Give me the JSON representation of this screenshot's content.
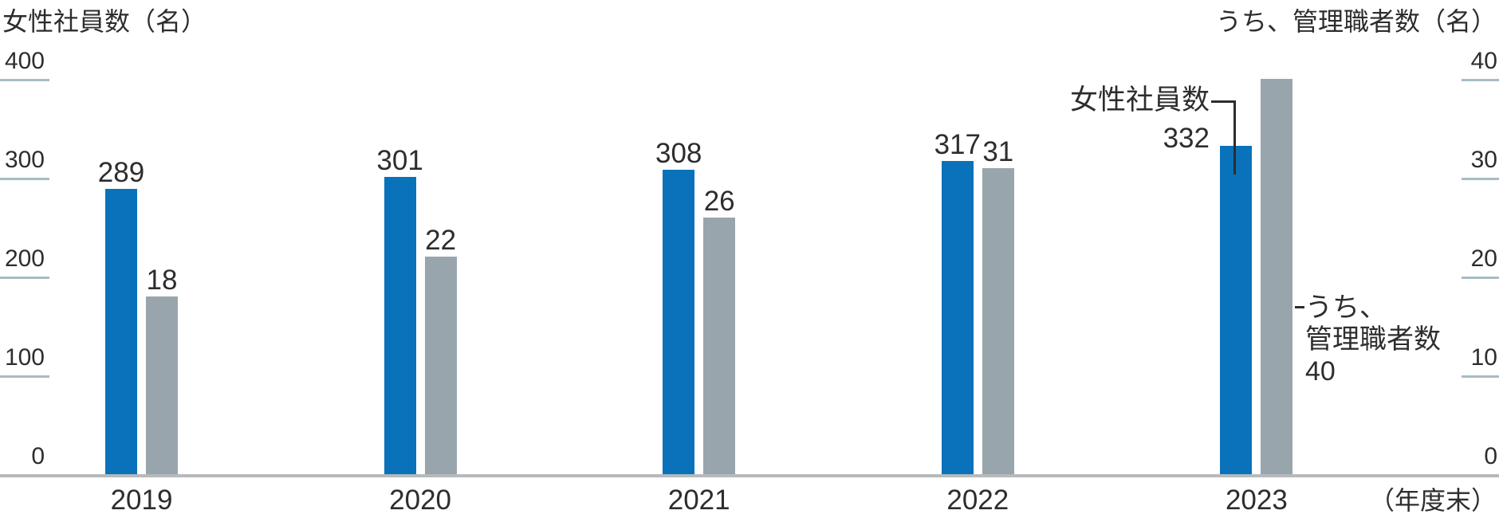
{
  "chart_data": {
    "type": "bar",
    "title_left": "女性社員数（名）",
    "title_right": "うち、管理職者数（名）",
    "x_axis_note": "（年度末）",
    "categories": [
      "2019",
      "2020",
      "2021",
      "2022",
      "2023"
    ],
    "series": [
      {
        "name": "女性社員数",
        "axis": "left",
        "color": "#0a72bb",
        "values": [
          289,
          301,
          308,
          317,
          332
        ],
        "value_labels": [
          "289",
          "301",
          "308",
          "317",
          ""
        ]
      },
      {
        "name": "うち、管理職者数",
        "axis": "right",
        "color": "#98a5ad",
        "values": [
          18,
          22,
          26,
          31,
          40
        ],
        "value_labels": [
          "18",
          "22",
          "26",
          "31",
          ""
        ]
      }
    ],
    "left_axis": {
      "max": 400,
      "ticks": [
        400,
        300,
        200,
        100,
        0
      ]
    },
    "right_axis": {
      "max": 40,
      "ticks": [
        40,
        30,
        20,
        10,
        0
      ]
    },
    "grid": false,
    "legend_position": "callout-on-2023-bars",
    "annotations": {
      "female": {
        "label": "女性社員数",
        "value": "332"
      },
      "manager": {
        "label_line1": "うち、",
        "label_line2": "管理職者数",
        "value": "40"
      }
    }
  },
  "colors": {
    "bar_female": "#0a72bb",
    "bar_manager": "#98a5ad",
    "tick_mark": "#a6bcc6",
    "baseline": "#b6babc",
    "text": "#2d2d2d",
    "background": "#ffffff"
  }
}
